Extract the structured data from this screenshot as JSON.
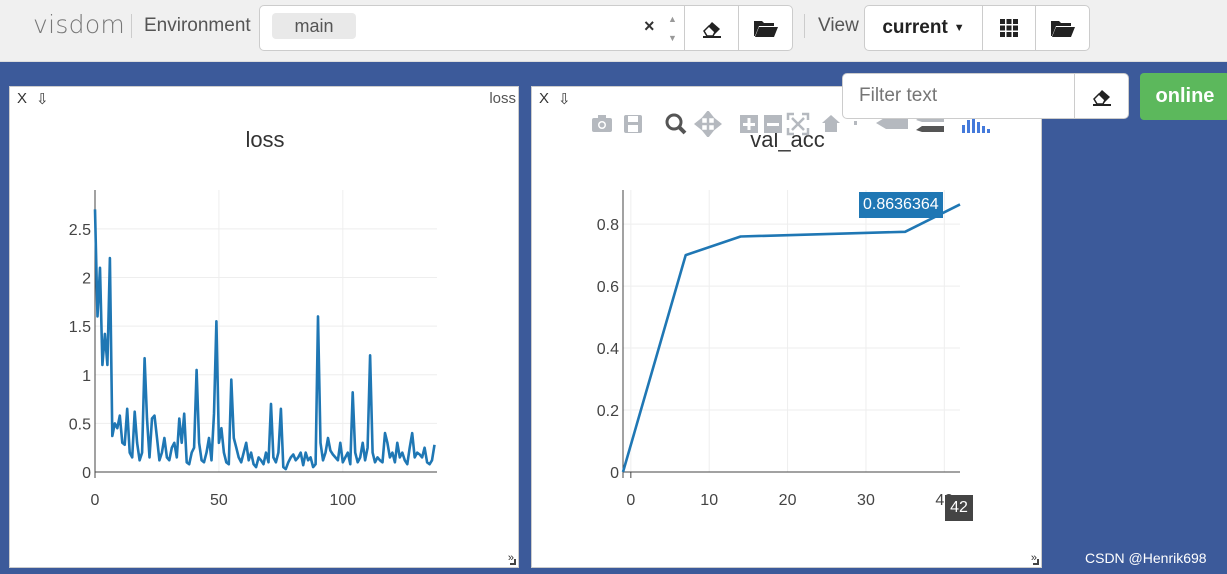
{
  "navbar": {
    "brand": "visdom",
    "environment_label": "Environment",
    "environment_tag": "main",
    "clear_glyph": "×",
    "view_label": "View",
    "view_value": "current"
  },
  "filter": {
    "placeholder": "Filter text"
  },
  "online_label": "online",
  "panes": {
    "loss": {
      "close": "X",
      "download": "⇩",
      "window_name": "loss",
      "title": "loss"
    },
    "val_acc": {
      "close": "X",
      "download": "⇩",
      "title": "val_acc",
      "hover_value": "0.8636364",
      "hover_x": "42"
    }
  },
  "watermark": "CSDN @Henrik698",
  "colors": {
    "line": "#1f77b4",
    "grid": "#eeeeee",
    "background": "#3c5a9a",
    "online": "#5cb85c"
  },
  "chart_data": [
    {
      "type": "line",
      "title": "loss",
      "xlim": [
        0,
        138
      ],
      "ylim": [
        0,
        2.9
      ],
      "x_ticks": [
        0,
        50,
        100
      ],
      "y_ticks": [
        0,
        0.5,
        1,
        1.5,
        2,
        2.5
      ],
      "x_tick_labels": [
        "0",
        "50",
        "100"
      ],
      "y_tick_labels": [
        "0",
        "0.5",
        "1",
        "1.5",
        "2",
        "2.5"
      ],
      "grid": true,
      "series": [
        {
          "values": [
            2.7,
            1.6,
            2.1,
            1.1,
            1.42,
            1.1,
            2.2,
            0.37,
            0.5,
            0.45,
            0.58,
            0.3,
            0.28,
            0.65,
            0.2,
            0.15,
            0.62,
            0.3,
            0.12,
            0.2,
            1.17,
            0.55,
            0.15,
            0.55,
            0.58,
            0.35,
            0.12,
            0.2,
            0.35,
            0.15,
            0.12,
            0.25,
            0.3,
            0.15,
            0.55,
            0.3,
            0.6,
            0.1,
            0.08,
            0.2,
            0.25,
            1.05,
            0.3,
            0.12,
            0.1,
            0.2,
            0.35,
            0.12,
            0.6,
            1.55,
            0.3,
            0.45,
            0.2,
            0.1,
            0.08,
            0.95,
            0.35,
            0.25,
            0.15,
            0.1,
            0.2,
            0.3,
            0.12,
            0.2,
            0.08,
            0.05,
            0.15,
            0.12,
            0.08,
            0.2,
            0.1,
            0.7,
            0.15,
            0.1,
            0.2,
            0.65,
            0.05,
            0.03,
            0.1,
            0.15,
            0.18,
            0.12,
            0.15,
            0.2,
            0.07,
            0.2,
            0.12,
            0.15,
            0.05,
            0.08,
            1.6,
            0.3,
            0.12,
            0.2,
            0.35,
            0.22,
            0.18,
            0.15,
            0.12,
            0.3,
            0.1,
            0.15,
            0.2,
            0.08,
            0.82,
            0.2,
            0.1,
            0.15,
            0.3,
            0.12,
            0.25,
            1.2,
            0.2,
            0.1,
            0.15,
            0.12,
            0.1,
            0.4,
            0.3,
            0.15,
            0.2,
            0.1,
            0.3,
            0.15,
            0.2,
            0.12,
            0.08,
            0.25,
            0.4,
            0.15,
            0.2,
            0.18,
            0.15,
            0.25,
            0.1,
            0.08,
            0.12,
            0.28
          ]
        }
      ]
    },
    {
      "type": "line",
      "title": "val_acc",
      "xlim": [
        -1,
        42
      ],
      "ylim": [
        0,
        0.91
      ],
      "x_ticks": [
        0,
        10,
        20,
        30,
        40
      ],
      "y_ticks": [
        0,
        0.2,
        0.4,
        0.6,
        0.8
      ],
      "x_tick_labels": [
        "0",
        "10",
        "20",
        "30",
        "40"
      ],
      "y_tick_labels": [
        "0",
        "0.2",
        "0.4",
        "0.6",
        "0.8"
      ],
      "grid": true,
      "series": [
        {
          "x": [
            -1,
            7,
            14,
            35,
            42
          ],
          "y": [
            0.0,
            0.7,
            0.76,
            0.775,
            0.8636364
          ]
        }
      ]
    }
  ]
}
